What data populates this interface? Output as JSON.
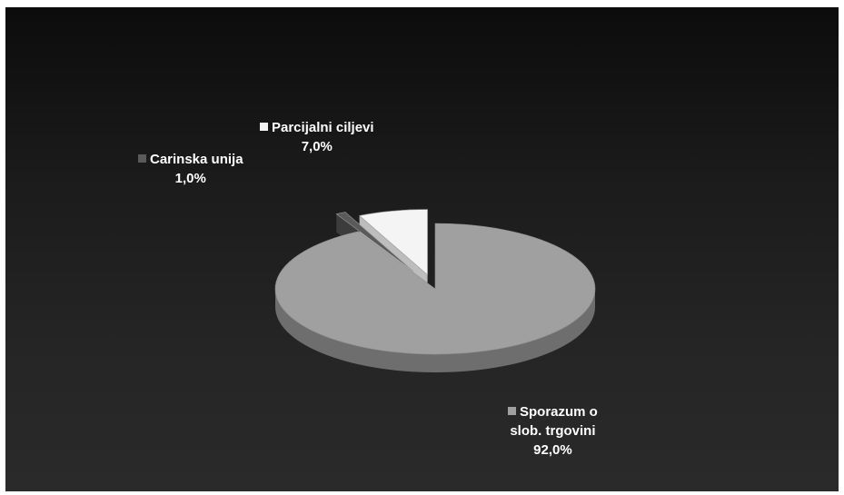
{
  "chart_data": {
    "type": "pie",
    "style": "3d-exploded",
    "slices": [
      {
        "label": "Sporazum o slob. trgovini",
        "label_lines": [
          "Sporazum o",
          "slob. trgovini"
        ],
        "value": 92.0,
        "value_label": "92,0%",
        "color": "#a0a0a0",
        "side_color": "#6e6e6e"
      },
      {
        "label": "Carinska unija",
        "label_lines": [
          "Carinska unija"
        ],
        "value": 1.0,
        "value_label": "1,0%",
        "color": "#5a5a5a",
        "side_color": "#3c3c3c"
      },
      {
        "label": "Parcijalni ciljevi",
        "label_lines": [
          "Parcijalni ciljevi"
        ],
        "value": 7.0,
        "value_label": "7,0%",
        "color": "#f4f4f4",
        "side_color": "#bdbdbd"
      }
    ],
    "background": "#1b1b1b"
  }
}
